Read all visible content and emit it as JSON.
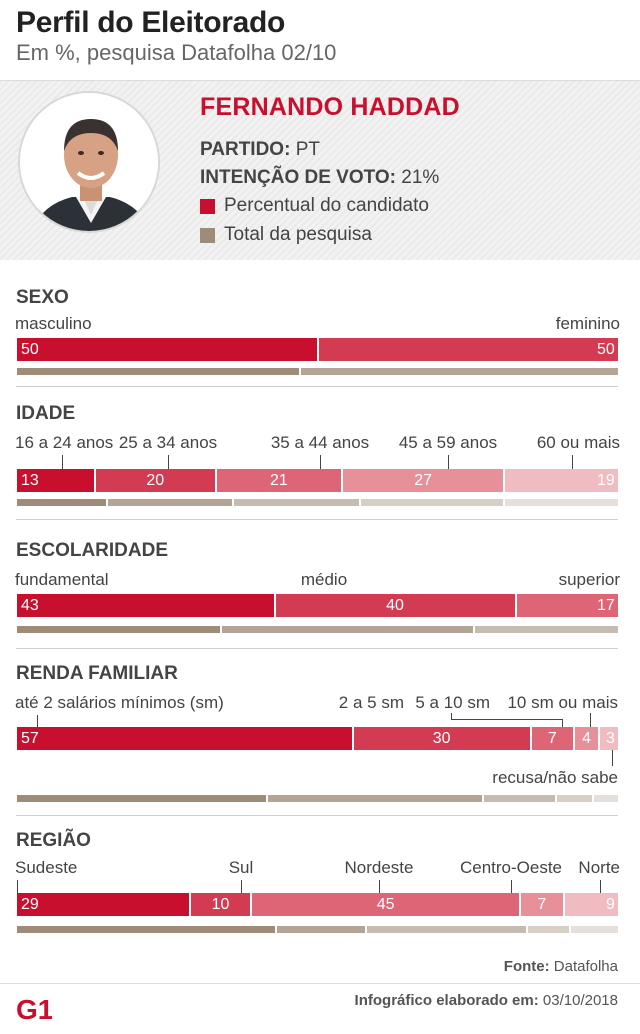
{
  "header": {
    "title": "Perfil do Eleitorado",
    "subtitle": "Em %, pesquisa Datafolha 02/10"
  },
  "candidate": {
    "name": "FERNANDO HADDAD",
    "party_label": "PARTIDO:",
    "party": "PT",
    "vote_label": "INTENÇÃO DE VOTO:",
    "vote": "21%",
    "legend_candidate": "Percentual do candidato",
    "legend_total": "Total da pesquisa"
  },
  "colors": {
    "candidate_shades": [
      "#c8102e",
      "#d23b52",
      "#dd6576",
      "#e79099",
      "#f0bcc1"
    ],
    "total_shades": [
      "#9e8b78",
      "#b3a495",
      "#c6bbb0",
      "#d7cfc6",
      "#e5e0db"
    ]
  },
  "chart_data": [
    {
      "type": "bar",
      "title": "SEXO",
      "categories": [
        "masculino",
        "feminino"
      ],
      "values": [
        50,
        50
      ],
      "total": [
        47,
        53
      ]
    },
    {
      "type": "bar",
      "title": "IDADE",
      "categories": [
        "16 a 24 anos",
        "25 a 34 anos",
        "35 a 44 anos",
        "45 a 59 anos",
        "60 ou mais"
      ],
      "values": [
        13,
        20,
        21,
        27,
        19
      ],
      "total": [
        15,
        21,
        21,
        24,
        19
      ]
    },
    {
      "type": "bar",
      "title": "ESCOLARIDADE",
      "categories": [
        "fundamental",
        "médio",
        "superior"
      ],
      "values": [
        43,
        40,
        17
      ],
      "total": [
        34,
        42,
        24
      ]
    },
    {
      "type": "bar",
      "title": "RENDA FAMILIAR",
      "categories": [
        "até 2 salários mínimos (sm)",
        "2 a 5 sm",
        "5 a 10 sm",
        "10 sm ou mais",
        "recusa/não sabe"
      ],
      "values": [
        57,
        30,
        7,
        4,
        3
      ],
      "total": [
        42,
        36,
        12,
        6,
        4
      ]
    },
    {
      "type": "bar",
      "title": "REGIÃO",
      "categories": [
        "Sudeste",
        "Sul",
        "Nordeste",
        "Centro-Oeste",
        "Norte"
      ],
      "values": [
        29,
        10,
        45,
        7,
        9
      ],
      "total": [
        44,
        15,
        27,
        7,
        8
      ]
    }
  ],
  "footer": {
    "source_label": "Fonte:",
    "source": "Datafolha",
    "credit_label": "Infográfico elaborado em:",
    "credit_date": "03/10/2018",
    "logo_text": "G1"
  }
}
